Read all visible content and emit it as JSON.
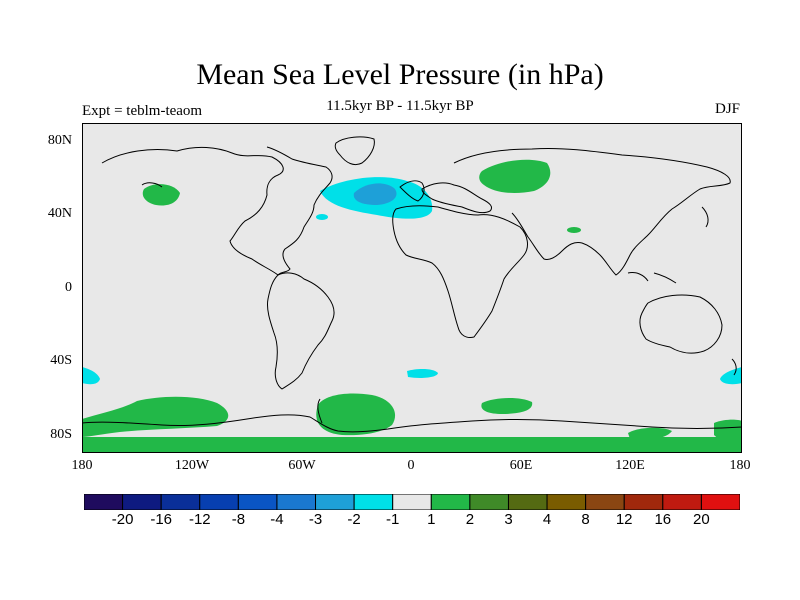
{
  "title": "Mean Sea Level Pressure (in hPa)",
  "subtitle": "11.5kyr BP - 11.5kyr BP",
  "experiment_label": "Expt = teblm-teaom",
  "season_label": "DJF",
  "map": {
    "projection": "cylindrical-equidistant",
    "lat_ticks": [
      "80N",
      "40N",
      "0",
      "40S",
      "80S"
    ],
    "lon_ticks": [
      "180",
      "120W",
      "60W",
      "0",
      "60E",
      "120E",
      "180"
    ],
    "background_color": "#e8e8e8",
    "coast_color": "#000000"
  },
  "colorbar": {
    "colors": [
      "#1f0b5e",
      "#0e1a80",
      "#0a2f99",
      "#073fb0",
      "#0a55c4",
      "#1a78d0",
      "#1ea0d8",
      "#00e0e8",
      "#e8e8e8",
      "#22b848",
      "#3f8a28",
      "#546a12",
      "#7a5c00",
      "#8a4612",
      "#a0280c",
      "#c01a10",
      "#e01010"
    ],
    "labels": [
      "-20",
      "-16",
      "-12",
      "-8",
      "-4",
      "-3",
      "-2",
      "-1",
      "1",
      "2",
      "3",
      "4",
      "8",
      "12",
      "16",
      "20"
    ]
  }
}
